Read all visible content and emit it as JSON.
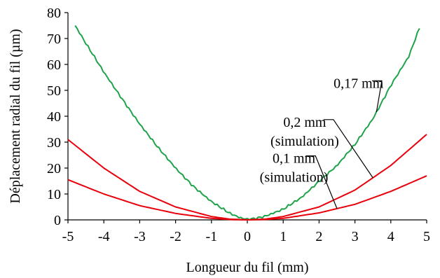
{
  "chart_data": {
    "type": "line",
    "xlabel": "Longueur du fil (mm)",
    "ylabel": "Déplacement radial du fil (µm)",
    "xlim": [
      -5,
      5
    ],
    "ylim": [
      0,
      80
    ],
    "xticks": [
      "-5",
      "-4",
      "-3",
      "-2",
      "-1",
      "0",
      "1",
      "2",
      "3",
      "4",
      "5"
    ],
    "yticks": [
      "0",
      "10",
      "20",
      "30",
      "40",
      "50",
      "60",
      "70",
      "80"
    ],
    "grid": false,
    "series": [
      {
        "name": "0,17 mm",
        "color": "#1fa34a",
        "x": [
          -4.8,
          -4.5,
          -4.0,
          -3.5,
          -3.0,
          -2.5,
          -2.0,
          -1.5,
          -1.0,
          -0.5,
          -0.2,
          0.0,
          0.2,
          0.5,
          1.0,
          1.5,
          2.0,
          2.5,
          3.0,
          3.5,
          4.0,
          4.5,
          4.8
        ],
        "y": [
          75,
          68,
          57,
          47,
          37,
          28,
          20,
          13,
          7,
          2.5,
          0.8,
          0.3,
          0.6,
          1.5,
          4,
          8.5,
          15,
          21,
          29,
          39,
          52,
          63,
          74
        ]
      },
      {
        "name": "0,2 mm (simulation)",
        "color": "#e8000b",
        "x": [
          -5,
          -4,
          -3,
          -2,
          -1,
          -0.5,
          0,
          0.5,
          1,
          2,
          3,
          4,
          5
        ],
        "y": [
          31,
          20,
          11,
          5,
          1.3,
          0.3,
          0,
          0.3,
          1.3,
          5,
          11.5,
          21,
          33
        ]
      },
      {
        "name": "0,1 mm (simulation)",
        "color": "#e8000b",
        "x": [
          -5,
          -4,
          -3,
          -2,
          -1,
          -0.5,
          0,
          0.5,
          1,
          2,
          3,
          4,
          5
        ],
        "y": [
          15.5,
          10,
          5.5,
          2.5,
          0.6,
          0.15,
          0,
          0.15,
          0.6,
          2.7,
          6,
          11,
          17
        ]
      }
    ],
    "annotations": [
      {
        "lines": [
          "0,17 mm"
        ],
        "series": 0,
        "text_x": 3.1,
        "text_y": 51,
        "bend_x": 3.2,
        "point_x": 3.6
      },
      {
        "lines": [
          "0,2 mm",
          "(simulation)"
        ],
        "series": 1,
        "text_x": 1.6,
        "text_y": 36,
        "bend_x": 2.1,
        "point_x": 3.5
      },
      {
        "lines": [
          "0,1 mm",
          "(simulation)"
        ],
        "series": 2,
        "text_x": 1.3,
        "text_y": 22,
        "bend_x": 1.6,
        "point_x": 2.5
      }
    ]
  }
}
